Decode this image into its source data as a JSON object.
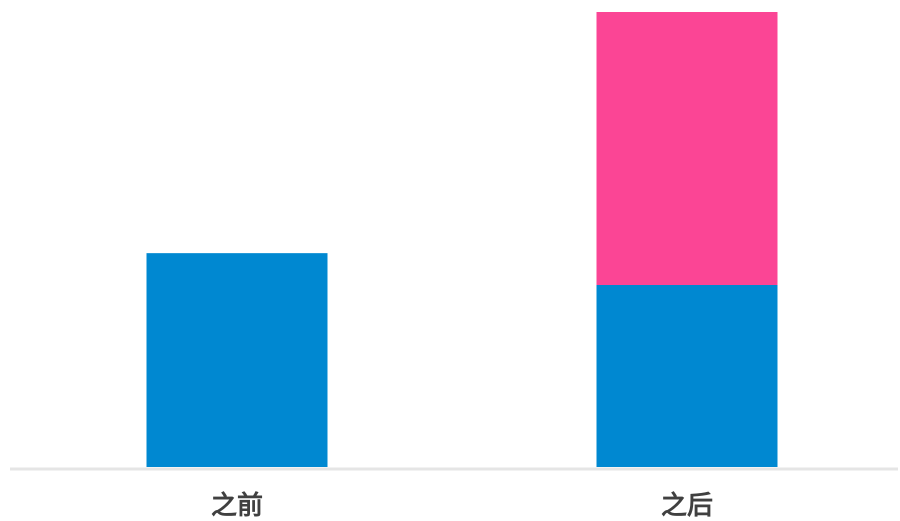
{
  "chart_data": {
    "type": "bar",
    "stacked": true,
    "categories": [
      "之前",
      "之后"
    ],
    "series": [
      {
        "values": [
          47,
          40
        ],
        "color": "#0088d1"
      },
      {
        "values": [
          0,
          60
        ],
        "color": "#fb4595"
      }
    ],
    "ylim": [
      0,
      100
    ],
    "grid": false,
    "legend": "none",
    "axis_color": "#e5e5e5"
  }
}
